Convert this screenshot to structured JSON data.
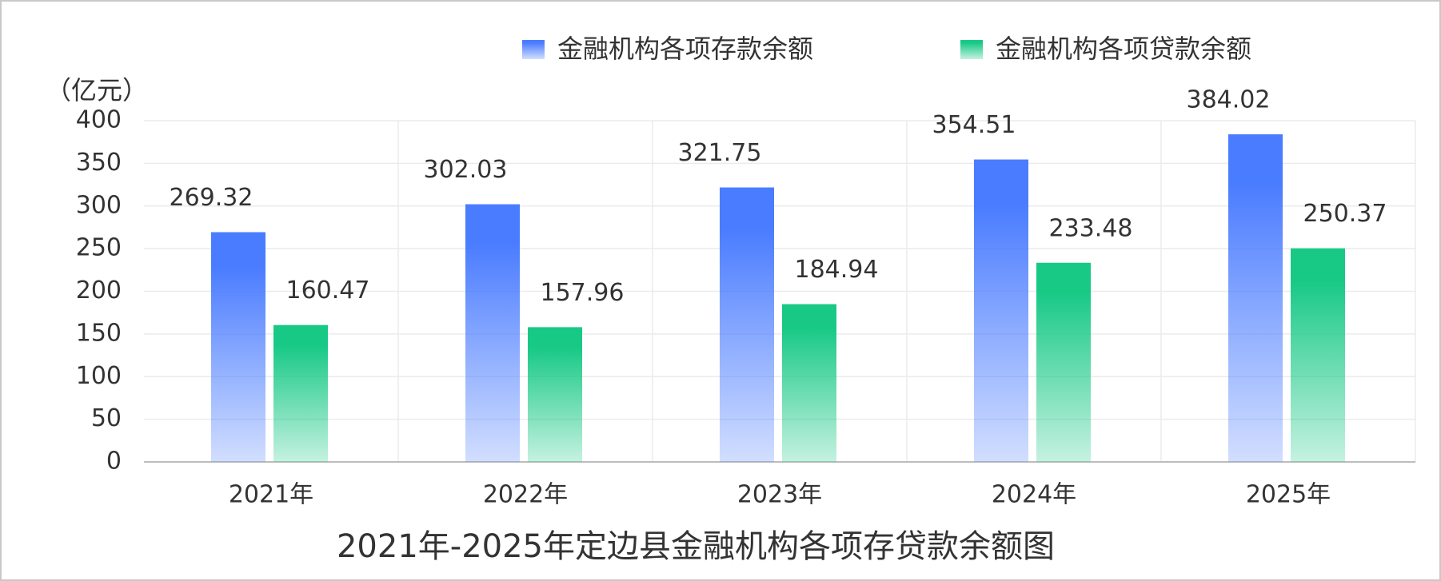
{
  "chart_data": {
    "type": "bar",
    "title": "2021年-2025年定边县金融机构各项存贷款余额图",
    "y_label": "（亿元）",
    "categories": [
      "2021年",
      "2022年",
      "2023年",
      "2024年",
      "2025年"
    ],
    "series": [
      {
        "name": "金融机构各项存款余额",
        "color": "#4a7cff",
        "values": [
          269.32,
          302.03,
          321.75,
          354.51,
          384.02
        ]
      },
      {
        "name": "金融机构各项贷款余额",
        "color": "#18c986",
        "values": [
          160.47,
          157.96,
          184.94,
          233.48,
          250.37
        ]
      }
    ],
    "ylim": [
      0,
      400
    ],
    "yticks": [
      0,
      50,
      100,
      150,
      200,
      250,
      300,
      350,
      400
    ],
    "grid": true
  }
}
